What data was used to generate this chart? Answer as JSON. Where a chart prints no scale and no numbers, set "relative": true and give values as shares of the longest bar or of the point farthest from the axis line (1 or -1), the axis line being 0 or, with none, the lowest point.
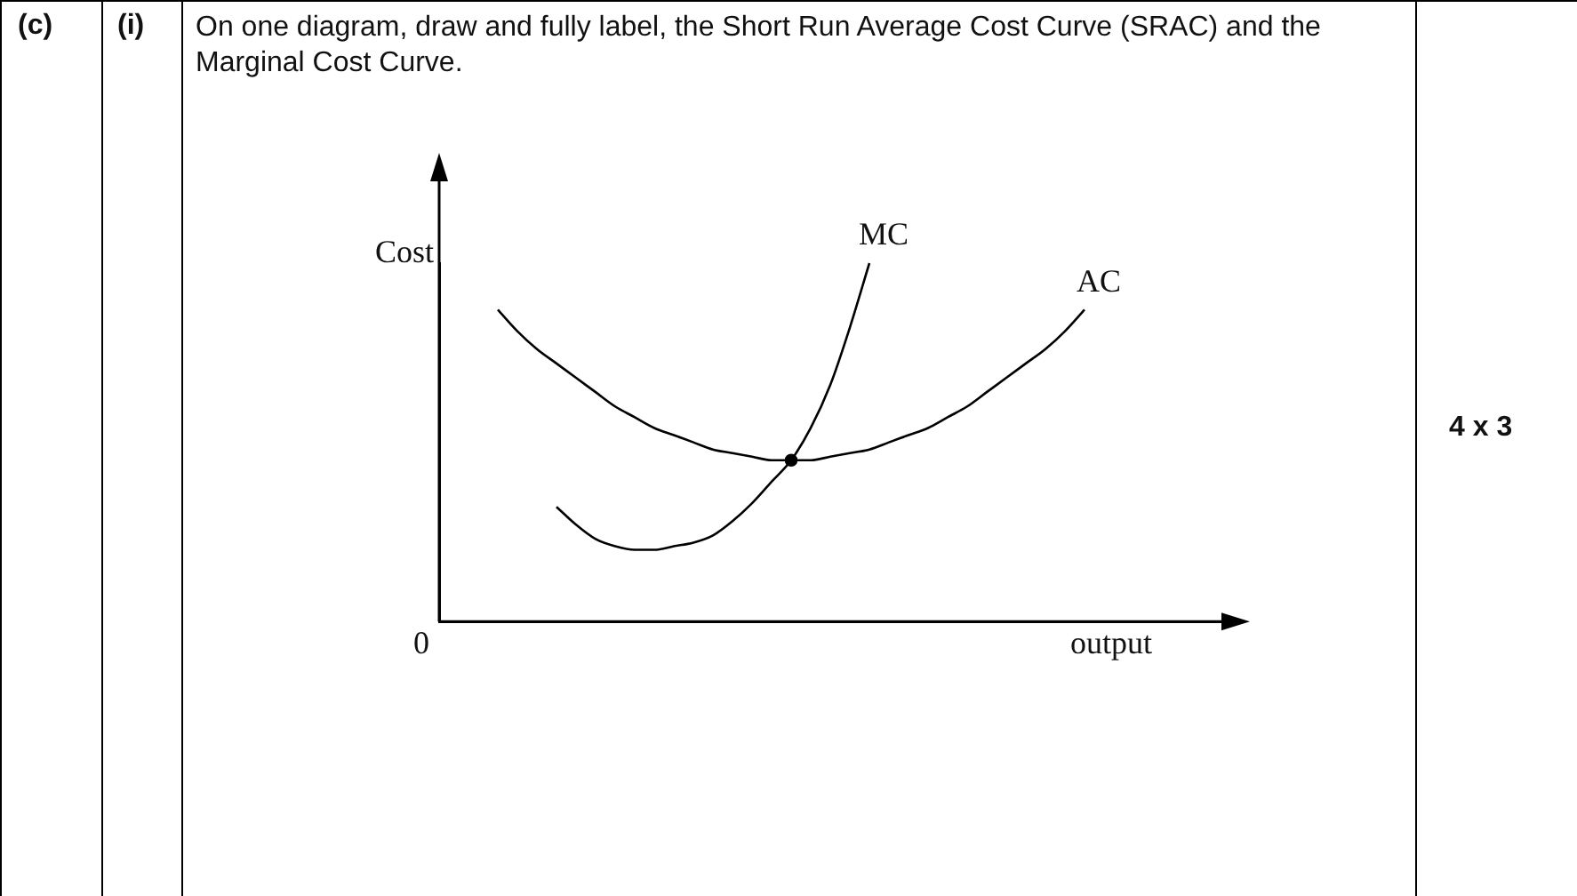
{
  "chart_data": {
    "type": "line",
    "relative": true,
    "title": "On one diagram, draw and fully label, the Short Run Average Cost Curve (SRAC) and the Marginal Cost Curve.",
    "xlabel": "output",
    "ylabel": "Cost",
    "annotations": [
      "(c)",
      "(i)",
      "4 x 3",
      "0"
    ],
    "legend": false,
    "grid": false,
    "marker": "none",
    "line_style": "solid",
    "categories": [
      null,
      null,
      null,
      null,
      null,
      null,
      null,
      null,
      null,
      null,
      null,
      null,
      null,
      null,
      null,
      null,
      null,
      null,
      null,
      null,
      null,
      null,
      null,
      null,
      null,
      null,
      null,
      null,
      null,
      null,
      null,
      null,
      null,
      null,
      null,
      null,
      null,
      null,
      null,
      null,
      null
    ],
    "series": [
      {
        "name": "MC",
        "color": "#000000",
        "values": [
          null,
          null,
          null,
          null,
          null,
          null,
          0.32,
          0.27,
          0.23,
          0.21,
          0.2,
          0.2,
          0.21,
          0.22,
          0.24,
          0.28,
          0.33,
          0.39,
          0.45,
          0.54,
          0.66,
          0.82,
          1.0,
          null,
          null,
          null,
          null,
          null,
          null,
          null,
          null,
          null,
          null,
          null,
          null,
          null,
          null,
          null,
          null,
          null,
          null
        ]
      },
      {
        "name": "AC",
        "color": "#000000",
        "values": [
          null,
          null,
          null,
          0.87,
          0.81,
          0.76,
          0.72,
          0.68,
          0.64,
          0.6,
          0.57,
          0.54,
          0.52,
          0.5,
          0.48,
          0.47,
          0.46,
          0.45,
          0.45,
          0.45,
          0.46,
          0.47,
          0.48,
          0.5,
          0.52,
          0.54,
          0.57,
          0.6,
          0.64,
          0.68,
          0.72,
          0.76,
          0.81,
          0.87,
          null,
          null,
          null,
          null,
          null,
          null,
          null
        ]
      },
      {
        "color": "#000000",
        "marker": "circle",
        "values": [
          null,
          null,
          null,
          null,
          null,
          null,
          null,
          null,
          null,
          null,
          null,
          null,
          null,
          null,
          null,
          null,
          null,
          null,
          0.45,
          null,
          null,
          null,
          null,
          null,
          null,
          null,
          null,
          null,
          null,
          null,
          null,
          null,
          null,
          null,
          null,
          null,
          null,
          null,
          null,
          null,
          null
        ]
      }
    ]
  }
}
